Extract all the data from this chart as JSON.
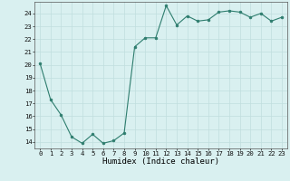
{
  "x": [
    0,
    1,
    2,
    3,
    4,
    5,
    6,
    7,
    8,
    9,
    10,
    11,
    12,
    13,
    14,
    15,
    16,
    17,
    18,
    19,
    20,
    21,
    22,
    23
  ],
  "y": [
    20.1,
    17.3,
    16.1,
    14.4,
    13.9,
    14.6,
    13.9,
    14.1,
    14.7,
    21.4,
    22.1,
    22.1,
    24.6,
    23.1,
    23.8,
    23.4,
    23.5,
    24.1,
    24.2,
    24.1,
    23.7,
    24.0,
    23.4,
    23.7
  ],
  "xlabel": "Humidex (Indice chaleur)",
  "ylabel_ticks": [
    14,
    15,
    16,
    17,
    18,
    19,
    20,
    21,
    22,
    23,
    24
  ],
  "ylim": [
    13.5,
    24.9
  ],
  "xlim": [
    -0.5,
    23.5
  ],
  "line_color": "#2e7d6e",
  "marker_color": "#2e7d6e",
  "bg_color": "#d9f0f0",
  "grid_color": "#c0dede",
  "axis_color": "#555555",
  "tick_fontsize": 5.2,
  "xlabel_fontsize": 6.5
}
